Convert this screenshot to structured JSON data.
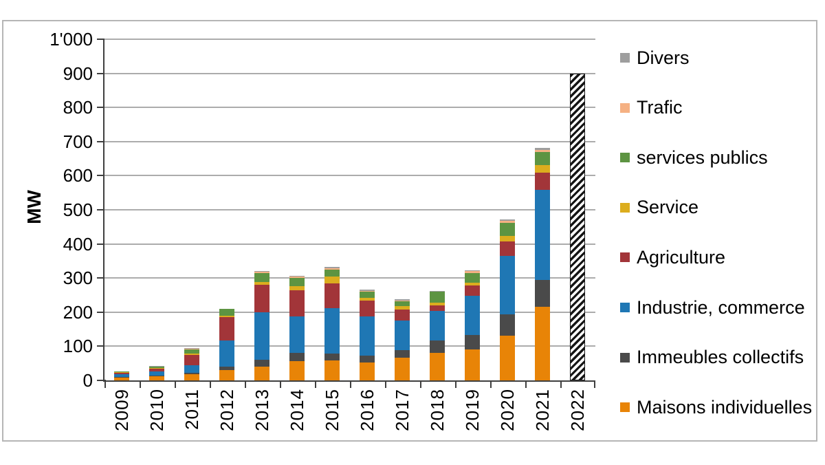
{
  "axis": {
    "y_title": "MW"
  },
  "chart_data": {
    "type": "stacked-bar",
    "title": "",
    "ylabel": "MW",
    "xlabel": "",
    "ylim": [
      0,
      1000
    ],
    "ytick_step": 100,
    "ytick_labels": [
      "0",
      "100",
      "200",
      "300",
      "400",
      "500",
      "600",
      "700",
      "800",
      "900",
      "1'000"
    ],
    "grid": true,
    "legend_position": "right",
    "categories": [
      "2009",
      "2010",
      "2011",
      "2012",
      "2013",
      "2014",
      "2015",
      "2016",
      "2017",
      "2018",
      "2019",
      "2020",
      "2021",
      "2022"
    ],
    "series_bottom_to_top": [
      {
        "name": "Maisons individuelles",
        "color": "#E88407",
        "values": [
          10,
          13,
          18,
          30,
          40,
          57,
          58,
          52,
          66,
          80,
          90,
          132,
          216,
          0
        ]
      },
      {
        "name": "Immeubles collectifs",
        "color": "#4A4A4A",
        "values": [
          1,
          1,
          5,
          10,
          20,
          23,
          20,
          21,
          23,
          37,
          44,
          62,
          79,
          0
        ]
      },
      {
        "name": "Industrie, commerce",
        "color": "#1F77B4",
        "values": [
          8,
          13,
          22,
          77,
          140,
          107,
          133,
          114,
          87,
          87,
          114,
          171,
          264,
          0
        ]
      },
      {
        "name": "Agriculture",
        "color": "#A23539",
        "values": [
          4,
          8,
          30,
          68,
          80,
          77,
          74,
          46,
          32,
          15,
          30,
          42,
          50,
          0
        ]
      },
      {
        "name": "Service",
        "color": "#DCAD1E",
        "values": [
          1,
          2,
          4,
          5,
          9,
          12,
          19,
          8,
          9,
          8,
          9,
          17,
          22,
          0
        ]
      },
      {
        "name": "services publics",
        "color": "#5D9442",
        "values": [
          3,
          5,
          12,
          20,
          25,
          25,
          21,
          20,
          15,
          35,
          28,
          38,
          39,
          0
        ]
      },
      {
        "name": "Trafic",
        "color": "#F5B183",
        "values": [
          0,
          0,
          1,
          0,
          4,
          3,
          3,
          2,
          2,
          0,
          5,
          5,
          5,
          0
        ]
      },
      {
        "name": "Divers",
        "color": "#9E9E9E",
        "values": [
          0,
          1,
          2,
          0,
          2,
          2,
          5,
          3,
          3,
          1,
          2,
          5,
          7,
          0
        ]
      }
    ],
    "totals_mw": [
      27,
      43,
      94,
      210,
      320,
      306,
      333,
      266,
      237,
      263,
      322,
      472,
      682,
      900
    ],
    "forecast_bar": {
      "category": "2022",
      "total_mw": 900,
      "style": "black-white-diagonal-hatch"
    }
  },
  "legend": {
    "items": [
      {
        "label": "Divers",
        "color": "#9E9E9E"
      },
      {
        "label": "Trafic",
        "color": "#F5B183"
      },
      {
        "label": "services publics",
        "color": "#5D9442"
      },
      {
        "label": "Service",
        "color": "#DCAD1E"
      },
      {
        "label": "Agriculture",
        "color": "#A23539"
      },
      {
        "label": "Industrie, commerce",
        "color": "#1F77B4"
      },
      {
        "label": "Immeubles collectifs",
        "color": "#4A4A4A"
      },
      {
        "label": "Maisons individuelles",
        "color": "#E88407"
      }
    ]
  }
}
